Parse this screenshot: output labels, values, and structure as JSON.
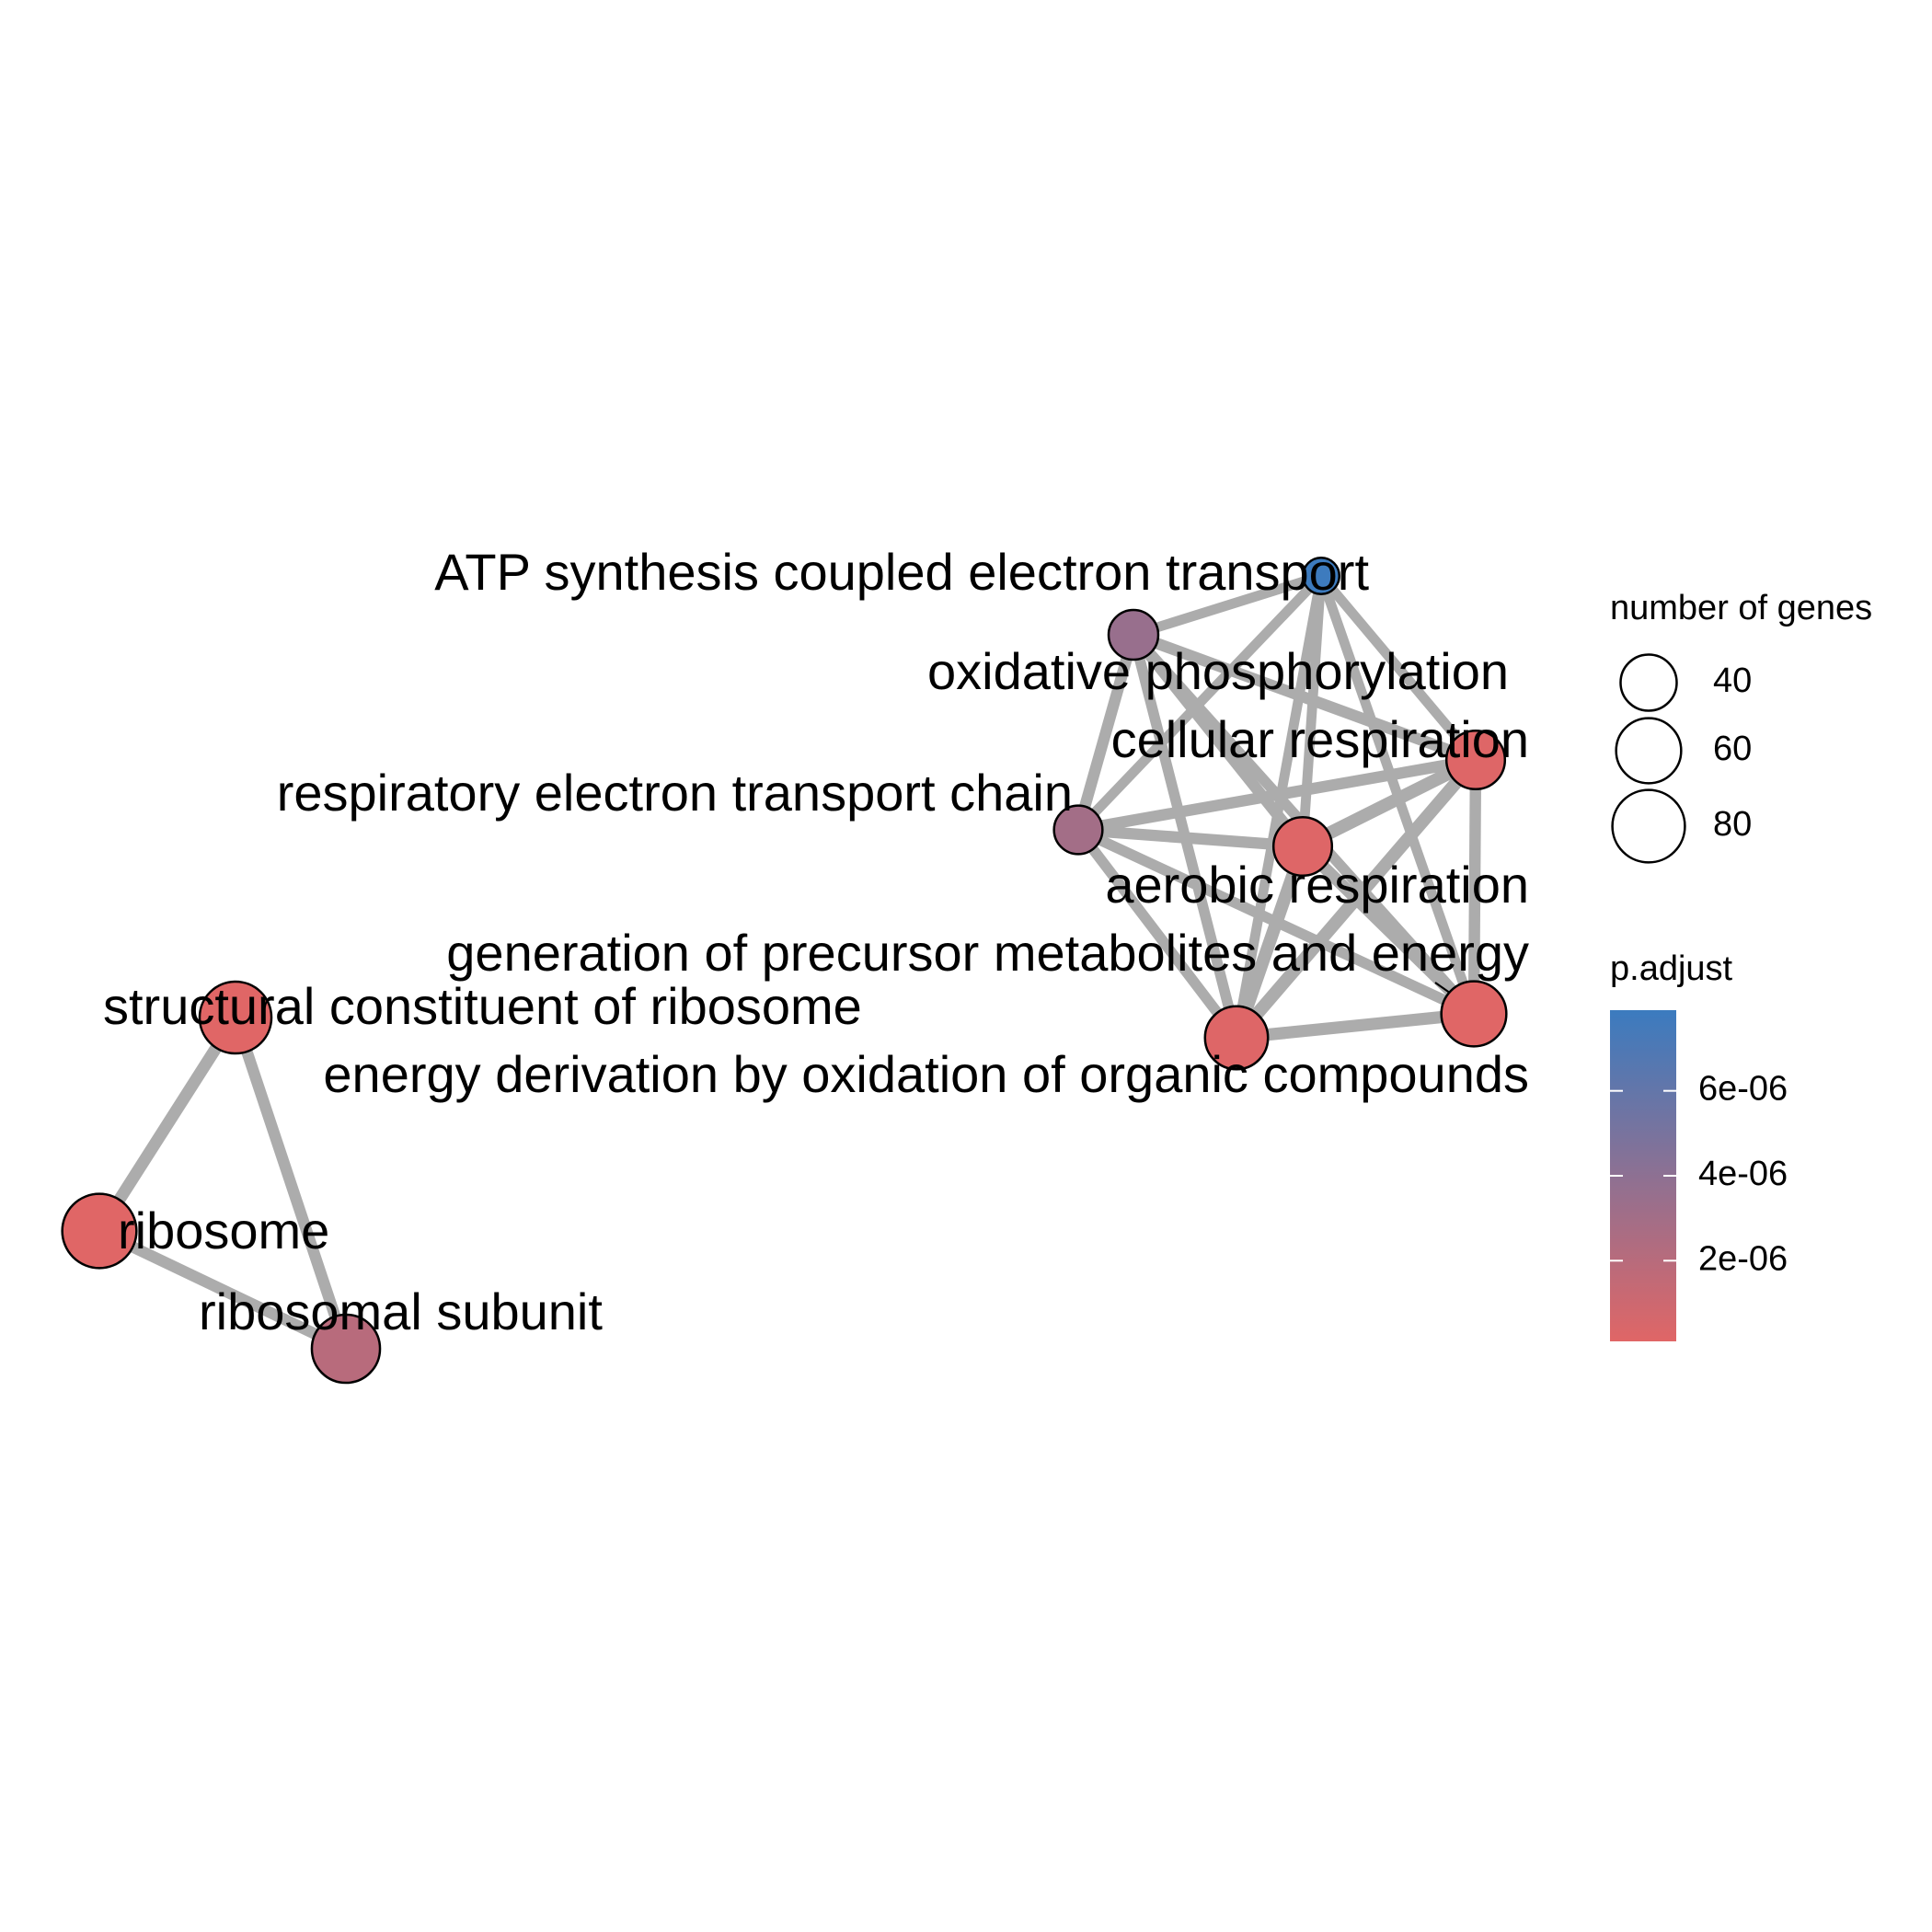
{
  "colors": {
    "low": "#e06666",
    "high": "#3b7bbf",
    "edge": "#acacac"
  },
  "nodes": [
    {
      "id": "atp",
      "label": "ATP synthesis coupled electron transport",
      "genes": 10,
      "p_adjust": 7.8e-06
    },
    {
      "id": "oxphos",
      "label": "oxidative phosphorylation",
      "genes": 28,
      "p_adjust": 3.5e-06
    },
    {
      "id": "cellresp",
      "label": "cellular respiration",
      "genes": 45,
      "p_adjust": 2e-07
    },
    {
      "id": "retc",
      "label": "respiratory electron transport chain",
      "genes": 26,
      "p_adjust": 3e-06
    },
    {
      "id": "aerobic",
      "label": "aerobic respiration",
      "genes": 45,
      "p_adjust": 2e-07
    },
    {
      "id": "genprec",
      "label": "generation of precursor metabolites and energy",
      "genes": 60,
      "p_adjust": 1e-07
    },
    {
      "id": "energy",
      "label": "energy derivation by oxidation of organic compounds",
      "genes": 55,
      "p_adjust": 2e-07
    },
    {
      "id": "structrib",
      "label": "structural constituent of ribosome",
      "genes": 78,
      "p_adjust": 1e-07
    },
    {
      "id": "ribosome",
      "label": "ribosome",
      "genes": 85,
      "p_adjust": 1e-07
    },
    {
      "id": "ribsub",
      "label": "ribosomal subunit",
      "genes": 68,
      "p_adjust": 2e-06
    }
  ],
  "edges": [
    {
      "source": "atp",
      "target": "oxphos",
      "weight": 0.6
    },
    {
      "source": "atp",
      "target": "cellresp",
      "weight": 0.6
    },
    {
      "source": "atp",
      "target": "retc",
      "weight": 0.6
    },
    {
      "source": "atp",
      "target": "aerobic",
      "weight": 0.6
    },
    {
      "source": "atp",
      "target": "genprec",
      "weight": 0.6
    },
    {
      "source": "atp",
      "target": "energy",
      "weight": 0.6
    },
    {
      "source": "oxphos",
      "target": "cellresp",
      "weight": 0.8
    },
    {
      "source": "oxphos",
      "target": "retc",
      "weight": 0.8
    },
    {
      "source": "oxphos",
      "target": "aerobic",
      "weight": 0.8
    },
    {
      "source": "oxphos",
      "target": "genprec",
      "weight": 0.7
    },
    {
      "source": "oxphos",
      "target": "energy",
      "weight": 0.7
    },
    {
      "source": "cellresp",
      "target": "retc",
      "weight": 0.8
    },
    {
      "source": "cellresp",
      "target": "aerobic",
      "weight": 1.0
    },
    {
      "source": "cellresp",
      "target": "genprec",
      "weight": 0.8
    },
    {
      "source": "cellresp",
      "target": "energy",
      "weight": 1.0
    },
    {
      "source": "retc",
      "target": "aerobic",
      "weight": 0.8
    },
    {
      "source": "retc",
      "target": "genprec",
      "weight": 0.7
    },
    {
      "source": "retc",
      "target": "energy",
      "weight": 0.7
    },
    {
      "source": "aerobic",
      "target": "genprec",
      "weight": 0.9
    },
    {
      "source": "aerobic",
      "target": "energy",
      "weight": 1.0
    },
    {
      "source": "genprec",
      "target": "energy",
      "weight": 0.9
    },
    {
      "source": "structrib",
      "target": "ribosome",
      "weight": 0.9
    },
    {
      "source": "structrib",
      "target": "ribsub",
      "weight": 0.8
    },
    {
      "source": "ribosome",
      "target": "ribsub",
      "weight": 0.8
    }
  ],
  "legend": {
    "size_title": "number of genes",
    "size_breaks": [
      {
        "value": 40,
        "label": "40"
      },
      {
        "value": 60,
        "label": "60"
      },
      {
        "value": 80,
        "label": "80"
      }
    ],
    "color_title": "p.adjust",
    "color_ticks": [
      {
        "value": 6e-06,
        "label": "6e-06"
      },
      {
        "value": 4e-06,
        "label": "4e-06"
      },
      {
        "value": 2e-06,
        "label": "2e-06"
      }
    ],
    "color_range": [
      1e-07,
      7.9e-06
    ]
  }
}
